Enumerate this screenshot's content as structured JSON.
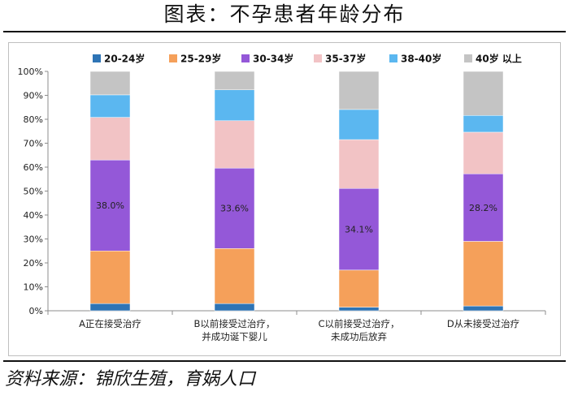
{
  "header": {
    "title": "图表：不孕患者年龄分布"
  },
  "footer": {
    "source": "资料来源：锦欣生殖，育娲人口"
  },
  "chart_data": {
    "type": "bar",
    "stacked": true,
    "ylim": [
      0,
      100
    ],
    "yticks": [
      "0%",
      "10%",
      "20%",
      "30%",
      "40%",
      "50%",
      "60%",
      "70%",
      "80%",
      "90%",
      "100%"
    ],
    "grid": false,
    "legend_position": "top",
    "categories": [
      [
        "A正在接受治疗"
      ],
      [
        "B以前接受过治疗，",
        "并成功诞下婴儿"
      ],
      [
        "C以前接受过治疗，",
        "未成功后放弃"
      ],
      [
        "D从未接受过治疗"
      ]
    ],
    "series": [
      {
        "name": "20-24岁",
        "color": "#2e74b5",
        "values": [
          3.0,
          3.0,
          1.5,
          2.0
        ]
      },
      {
        "name": "25-29岁",
        "color": "#f5a05a",
        "values": [
          22.0,
          23.0,
          15.5,
          27.0
        ]
      },
      {
        "name": "30-34岁",
        "color": "#9458d8",
        "values": [
          38.0,
          33.6,
          34.1,
          28.2
        ]
      },
      {
        "name": "35-37岁",
        "color": "#f2c3c5",
        "values": [
          17.8,
          19.8,
          20.4,
          17.4
        ]
      },
      {
        "name": "38-40岁",
        "color": "#5bb7f0",
        "values": [
          9.4,
          12.9,
          12.6,
          7.0
        ]
      },
      {
        "name": "40岁 以上",
        "color": "#c4c4c4",
        "values": [
          9.8,
          7.7,
          15.9,
          18.4
        ]
      }
    ],
    "data_labels": {
      "series": "30-34岁",
      "texts": [
        "38.0%",
        "33.6%",
        "34.1%",
        "28.2%"
      ]
    }
  }
}
